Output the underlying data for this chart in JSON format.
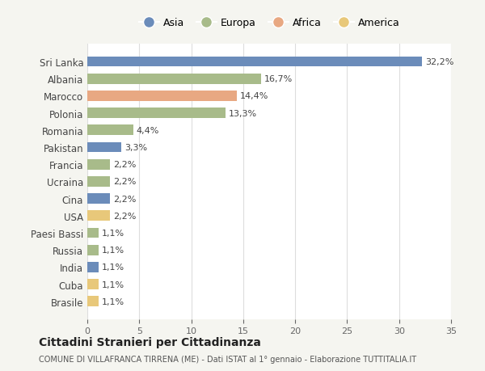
{
  "countries": [
    "Sri Lanka",
    "Albania",
    "Marocco",
    "Polonia",
    "Romania",
    "Pakistan",
    "Francia",
    "Ucraina",
    "Cina",
    "USA",
    "Paesi Bassi",
    "Russia",
    "India",
    "Cuba",
    "Brasile"
  ],
  "values": [
    32.2,
    16.7,
    14.4,
    13.3,
    4.4,
    3.3,
    2.2,
    2.2,
    2.2,
    2.2,
    1.1,
    1.1,
    1.1,
    1.1,
    1.1
  ],
  "labels": [
    "32,2%",
    "16,7%",
    "14,4%",
    "13,3%",
    "4,4%",
    "3,3%",
    "2,2%",
    "2,2%",
    "2,2%",
    "2,2%",
    "1,1%",
    "1,1%",
    "1,1%",
    "1,1%",
    "1,1%"
  ],
  "continents": [
    "Asia",
    "Europa",
    "Africa",
    "Europa",
    "Europa",
    "Asia",
    "Europa",
    "Europa",
    "Asia",
    "America",
    "Europa",
    "Europa",
    "Asia",
    "America",
    "America"
  ],
  "colors": {
    "Asia": "#6b8cba",
    "Europa": "#a8bb8a",
    "Africa": "#e8a882",
    "America": "#e8c87a"
  },
  "legend_items": [
    "Asia",
    "Europa",
    "Africa",
    "America"
  ],
  "xlim": [
    0,
    35
  ],
  "xticks": [
    0,
    5,
    10,
    15,
    20,
    25,
    30,
    35
  ],
  "title": "Cittadini Stranieri per Cittadinanza",
  "subtitle": "COMUNE DI VILLAFRANCA TIRRENA (ME) - Dati ISTAT al 1° gennaio - Elaborazione TUTTITALIA.IT",
  "background_color": "#f5f5f0",
  "bar_background": "#ffffff",
  "grid_color": "#dddddd"
}
